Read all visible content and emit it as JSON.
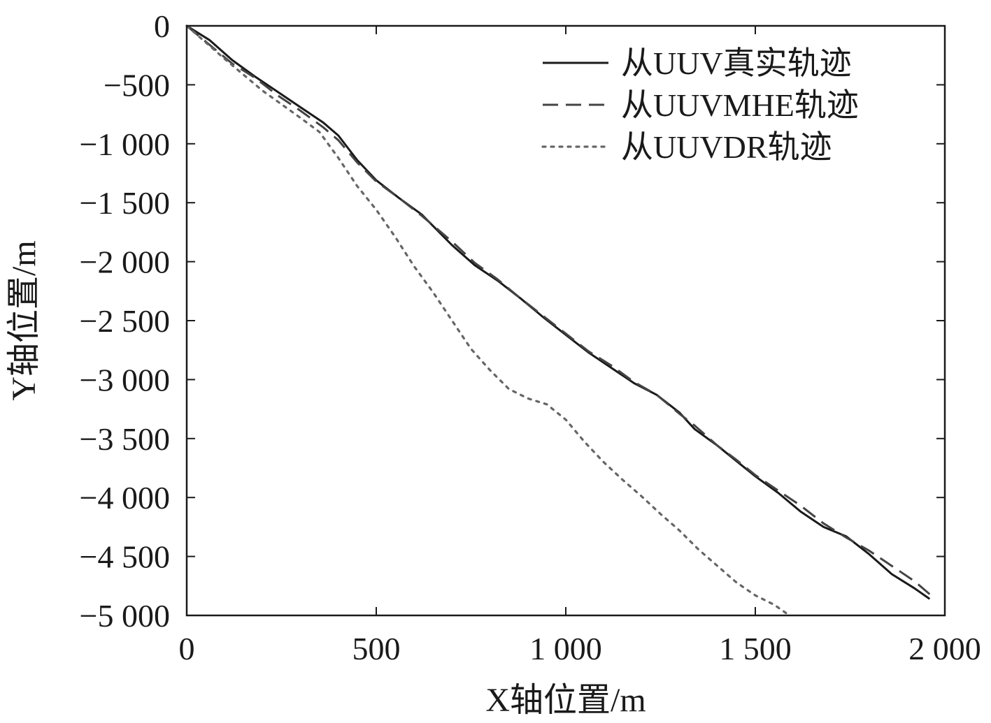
{
  "chart_data": {
    "type": "line",
    "xlabel": "X轴位置/m",
    "ylabel": "Y轴位置/m",
    "xlim": [
      0,
      2000
    ],
    "ylim": [
      -5000,
      0
    ],
    "x_ticks": [
      0,
      500,
      1000,
      1500,
      2000
    ],
    "x_tick_labels": [
      "0",
      "500",
      "1 000",
      "1 500",
      "2 000"
    ],
    "y_ticks": [
      0,
      -500,
      -1000,
      -1500,
      -2000,
      -2500,
      -3000,
      -3500,
      -4000,
      -4500,
      -5000
    ],
    "y_tick_labels": [
      "0",
      "−500",
      "−1 000",
      "−1 500",
      "−2 000",
      "−2 500",
      "−3 000",
      "−3 500",
      "−4 000",
      "−4 500",
      "−5 000"
    ],
    "grid": false,
    "legend_position": "top-right",
    "series": [
      {
        "name": "从UUV真实轨迹",
        "style": "solid",
        "color": "#1a1a1a",
        "points": [
          [
            0,
            0
          ],
          [
            60,
            -120
          ],
          [
            120,
            -290
          ],
          [
            180,
            -430
          ],
          [
            240,
            -560
          ],
          [
            300,
            -690
          ],
          [
            360,
            -820
          ],
          [
            400,
            -930
          ],
          [
            450,
            -1140
          ],
          [
            500,
            -1310
          ],
          [
            560,
            -1460
          ],
          [
            620,
            -1600
          ],
          [
            700,
            -1860
          ],
          [
            760,
            -2030
          ],
          [
            820,
            -2160
          ],
          [
            880,
            -2310
          ],
          [
            940,
            -2470
          ],
          [
            1000,
            -2620
          ],
          [
            1060,
            -2770
          ],
          [
            1120,
            -2900
          ],
          [
            1180,
            -3030
          ],
          [
            1240,
            -3130
          ],
          [
            1300,
            -3280
          ],
          [
            1340,
            -3420
          ],
          [
            1400,
            -3560
          ],
          [
            1450,
            -3690
          ],
          [
            1500,
            -3820
          ],
          [
            1560,
            -3960
          ],
          [
            1620,
            -4120
          ],
          [
            1680,
            -4250
          ],
          [
            1740,
            -4330
          ],
          [
            1800,
            -4480
          ],
          [
            1860,
            -4650
          ],
          [
            1920,
            -4770
          ],
          [
            1960,
            -4860
          ]
        ]
      },
      {
        "name": "从UUVMHE轨迹",
        "style": "dashed",
        "color": "#444444",
        "points": [
          [
            0,
            0
          ],
          [
            60,
            -160
          ],
          [
            120,
            -320
          ],
          [
            180,
            -440
          ],
          [
            240,
            -590
          ],
          [
            300,
            -720
          ],
          [
            360,
            -860
          ],
          [
            400,
            -970
          ],
          [
            450,
            -1160
          ],
          [
            500,
            -1320
          ],
          [
            560,
            -1460
          ],
          [
            620,
            -1610
          ],
          [
            700,
            -1830
          ],
          [
            760,
            -2010
          ],
          [
            820,
            -2150
          ],
          [
            880,
            -2310
          ],
          [
            940,
            -2460
          ],
          [
            1000,
            -2610
          ],
          [
            1060,
            -2760
          ],
          [
            1120,
            -2880
          ],
          [
            1180,
            -3020
          ],
          [
            1240,
            -3130
          ],
          [
            1300,
            -3290
          ],
          [
            1340,
            -3390
          ],
          [
            1400,
            -3560
          ],
          [
            1450,
            -3680
          ],
          [
            1500,
            -3810
          ],
          [
            1560,
            -3940
          ],
          [
            1620,
            -4070
          ],
          [
            1680,
            -4220
          ],
          [
            1740,
            -4340
          ],
          [
            1800,
            -4450
          ],
          [
            1860,
            -4580
          ],
          [
            1920,
            -4710
          ],
          [
            1960,
            -4820
          ]
        ]
      },
      {
        "name": "从UUVDR轨迹",
        "style": "dotted",
        "color": "#666666",
        "points": [
          [
            0,
            0
          ],
          [
            100,
            -280
          ],
          [
            200,
            -550
          ],
          [
            300,
            -780
          ],
          [
            350,
            -900
          ],
          [
            400,
            -1120
          ],
          [
            450,
            -1360
          ],
          [
            500,
            -1560
          ],
          [
            550,
            -1790
          ],
          [
            600,
            -2040
          ],
          [
            650,
            -2260
          ],
          [
            700,
            -2500
          ],
          [
            750,
            -2740
          ],
          [
            800,
            -2920
          ],
          [
            850,
            -3080
          ],
          [
            900,
            -3160
          ],
          [
            950,
            -3210
          ],
          [
            1000,
            -3340
          ],
          [
            1050,
            -3530
          ],
          [
            1100,
            -3700
          ],
          [
            1150,
            -3850
          ],
          [
            1200,
            -3990
          ],
          [
            1250,
            -4140
          ],
          [
            1300,
            -4280
          ],
          [
            1350,
            -4440
          ],
          [
            1400,
            -4580
          ],
          [
            1450,
            -4720
          ],
          [
            1500,
            -4830
          ],
          [
            1550,
            -4910
          ],
          [
            1590,
            -5000
          ]
        ]
      }
    ]
  }
}
